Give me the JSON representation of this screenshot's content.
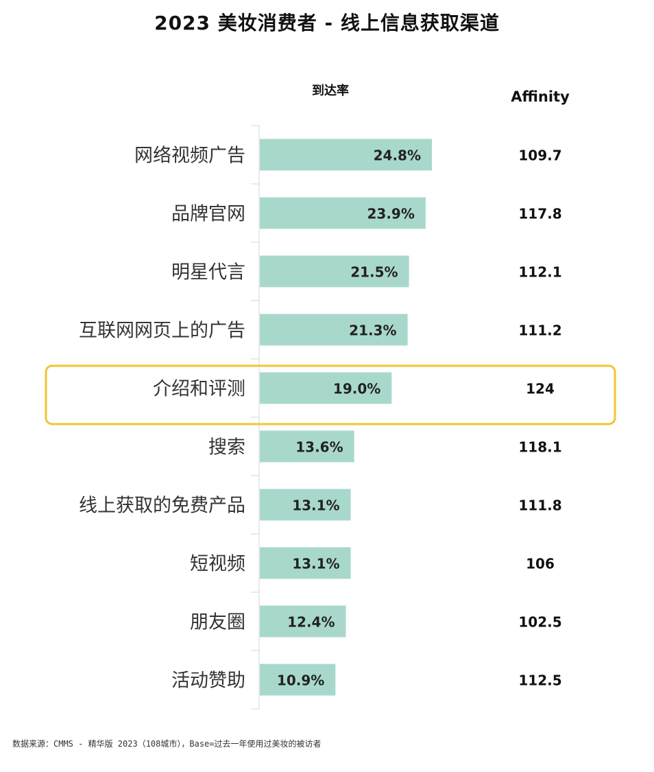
{
  "chart_data": {
    "type": "bar",
    "orientation": "horizontal",
    "title": "2023 美妆消费者 - 线上信息获取渠道",
    "columns": {
      "reach_label": "到达率",
      "affinity_label": "Affinity"
    },
    "categories": [
      "网络视频广告",
      "品牌官网",
      "明星代言",
      "互联网网页上的广告",
      "介绍和评测",
      "搜索",
      "线上获取的免费产品",
      "短视频",
      "朋友圈",
      "活动赞助"
    ],
    "series": [
      {
        "values": [
          24.8,
          23.9,
          21.5,
          21.3,
          19.0,
          13.6,
          13.1,
          13.1,
          12.4,
          10.9
        ]
      }
    ],
    "value_labels": [
      "24.8%",
      "23.9%",
      "21.5%",
      "21.3%",
      "19.0%",
      "13.6%",
      "13.1%",
      "13.1%",
      "12.4%",
      "10.9%"
    ],
    "affinity_labels": [
      "109.7",
      "117.8",
      "112.1",
      "111.2",
      "124",
      "118.1",
      "111.8",
      "106",
      "102.5",
      "112.5"
    ],
    "highlight": "介绍和评测",
    "bar_color": "#a8d8cc",
    "highlight_color": "#f2c530",
    "grid": false
  },
  "footnote": "数据来源：CMMS - 精华版 2023（108城市），Base=过去一年使用过美妆的被访者"
}
